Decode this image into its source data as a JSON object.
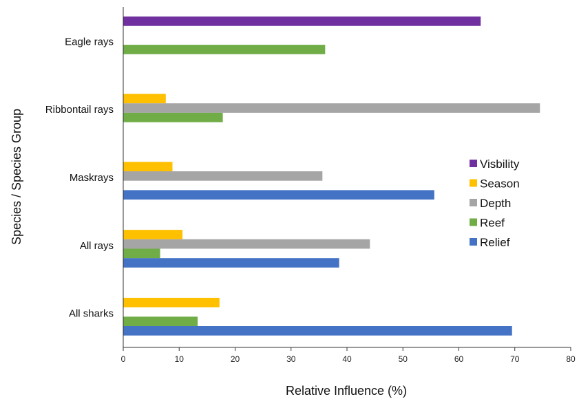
{
  "chart_data": {
    "type": "bar",
    "orientation": "horizontal",
    "xlabel": "Relative Influence (%)",
    "ylabel": "Species / Species Group",
    "xlim": [
      0,
      80
    ],
    "xticks": [
      "0",
      "10",
      "20",
      "30",
      "40",
      "50",
      "60",
      "70",
      "80"
    ],
    "grid": false,
    "legend_position": "right",
    "categories": [
      "Eagle rays",
      "Ribbontail rays",
      "Maskrays",
      "All rays",
      "All sharks"
    ],
    "series": [
      {
        "name": "Visbility",
        "color": "#7030A0",
        "values": [
          63.9,
          null,
          null,
          null,
          null
        ]
      },
      {
        "name": "Season",
        "color": "#FFC000",
        "values": [
          null,
          7.6,
          8.8,
          10.6,
          17.2
        ]
      },
      {
        "name": "Depth",
        "color": "#A5A5A5",
        "values": [
          null,
          74.5,
          35.6,
          44.1,
          null
        ]
      },
      {
        "name": "Reef",
        "color": "#70AD47",
        "values": [
          36.1,
          17.8,
          null,
          6.6,
          13.3
        ]
      },
      {
        "name": "Relief",
        "color": "#4472C4",
        "values": [
          null,
          null,
          55.6,
          38.6,
          69.5
        ]
      }
    ]
  }
}
